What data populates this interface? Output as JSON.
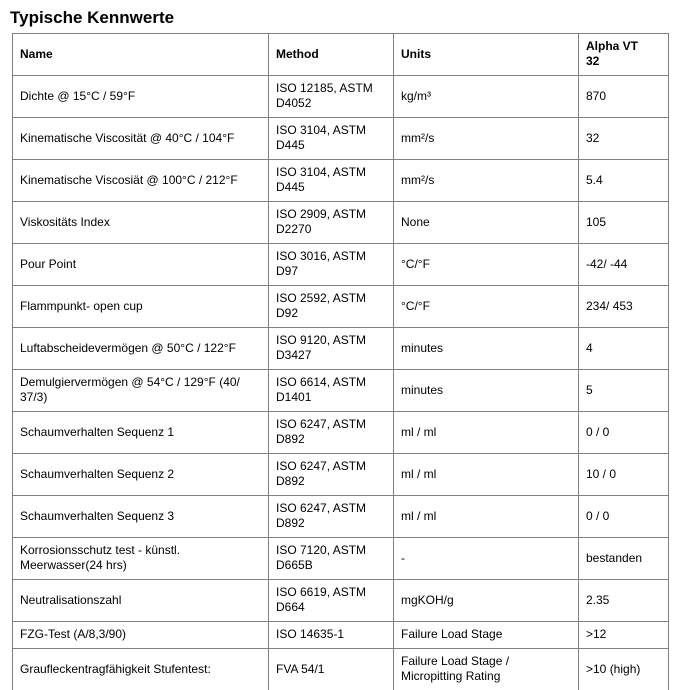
{
  "title": "Typische Kennwerte",
  "table": {
    "columns": [
      "Name",
      "Method",
      "Units",
      "Alpha VT 32"
    ],
    "rows": [
      {
        "name": "Dichte @ 15°C / 59°F",
        "method": "ISO 12185, ASTM D4052",
        "units": "kg/m³",
        "value": "870"
      },
      {
        "name": "Kinematische Viscosität @ 40°C / 104°F",
        "method": "ISO 3104, ASTM D445",
        "units": "mm²/s",
        "value": "32"
      },
      {
        "name": "Kinematische Viscosiät @ 100°C / 212°F",
        "method": "ISO 3104, ASTM D445",
        "units": "mm²/s",
        "value": "5.4"
      },
      {
        "name": "Viskositäts Index",
        "method": "ISO 2909, ASTM D2270",
        "units": "None",
        "value": "105"
      },
      {
        "name": "Pour Point",
        "method": "ISO 3016, ASTM D97",
        "units": "°C/°F",
        "value": "-42/ -44"
      },
      {
        "name": "Flammpunkt- open cup",
        "method": "ISO 2592, ASTM D92",
        "units": "°C/°F",
        "value": "234/ 453"
      },
      {
        "name": "Luftabscheidevermögen @ 50°C / 122°F",
        "method": "ISO 9120, ASTM D3427",
        "units": "minutes",
        "value": "4"
      },
      {
        "name": "Demulgiervermögen @ 54°C / 129°F (40/ 37/3)",
        "method": "ISO 6614, ASTM D1401",
        "units": "minutes",
        "value": "5"
      },
      {
        "name": "Schaumverhalten Sequenz 1",
        "method": "ISO 6247, ASTM D892",
        "units": "ml / ml",
        "value": "0 / 0"
      },
      {
        "name": "Schaumverhalten Sequenz 2",
        "method": "ISO 6247, ASTM D892",
        "units": "ml / ml",
        "value": "10 / 0"
      },
      {
        "name": "Schaumverhalten Sequenz 3",
        "method": "ISO 6247, ASTM D892",
        "units": "ml / ml",
        "value": "0 / 0"
      },
      {
        "name": "Korrosionsschutz test - künstl. Meerwasser(24 hrs)",
        "method": "ISO 7120, ASTM D665B",
        "units": "-",
        "value": "bestanden"
      },
      {
        "name": "Neutralisationszahl",
        "method": "ISO 6619, ASTM D664",
        "units": "mgKOH/g",
        "value": "2.35"
      },
      {
        "name": "FZG-Test (A/8,3/90)",
        "method": "ISO 14635-1",
        "units": "Failure Load Stage",
        "value": ">12"
      },
      {
        "name": "Graufleckentragfähigkeit Stufentest:",
        "method": "FVA 54/1",
        "units": "Failure Load Stage / Micropitting Rating",
        "value": ">10 (high)"
      }
    ]
  },
  "colors": {
    "border": "#808080",
    "text": "#000000",
    "background": "#ffffff"
  }
}
